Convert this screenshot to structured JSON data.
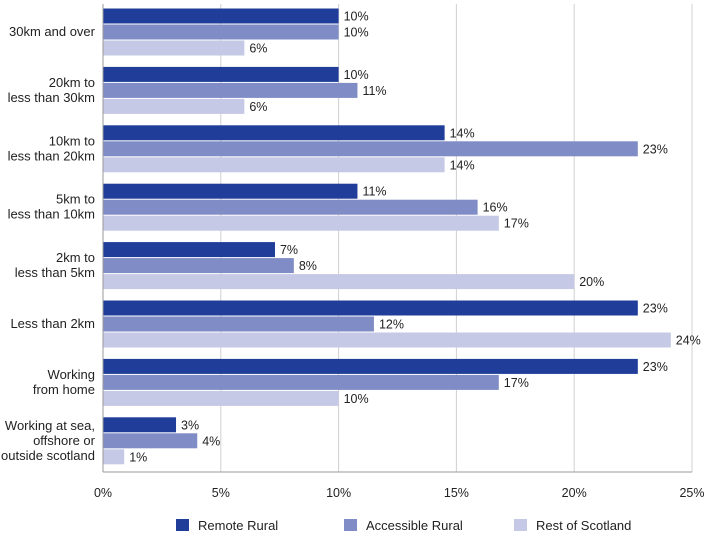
{
  "chart_data": {
    "type": "bar",
    "orientation": "horizontal",
    "categories": [
      [
        "30km and over"
      ],
      [
        "20km to",
        "less than 30km"
      ],
      [
        "10km to",
        "less than 20km"
      ],
      [
        "5km to",
        "less than 10km"
      ],
      [
        "2km to",
        "less than 5km"
      ],
      [
        "Less than 2km"
      ],
      [
        "Working",
        "from home"
      ],
      [
        "Working at sea,",
        "offshore or",
        "outside scotland"
      ]
    ],
    "series": [
      {
        "name": "Remote Rural",
        "color": "#1f3d99",
        "values": [
          10,
          10,
          14.5,
          10.8,
          7.3,
          22.7,
          22.7,
          3.1
        ],
        "labels": [
          "10%",
          "10%",
          "14%",
          "11%",
          "7%",
          "23%",
          "23%",
          "3%"
        ]
      },
      {
        "name": "Accessible Rural",
        "color": "#7f8cc6",
        "values": [
          10,
          10.8,
          22.7,
          15.9,
          8.1,
          11.5,
          16.8,
          4
        ],
        "labels": [
          "10%",
          "11%",
          "23%",
          "16%",
          "8%",
          "12%",
          "17%",
          "4%"
        ]
      },
      {
        "name": "Rest of Scotland",
        "color": "#c6c9e6",
        "values": [
          6,
          6,
          14.5,
          16.8,
          20,
          24.1,
          10,
          0.9
        ],
        "labels": [
          "6%",
          "6%",
          "14%",
          "17%",
          "20%",
          "24%",
          "10%",
          "1%"
        ]
      }
    ],
    "xlim": [
      0,
      25
    ],
    "xticks": [
      0,
      5,
      10,
      15,
      20,
      25
    ],
    "xtick_labels": [
      "0%",
      "5%",
      "10%",
      "15%",
      "20%",
      "25%"
    ],
    "gridlines": true,
    "legend_position": "bottom"
  }
}
